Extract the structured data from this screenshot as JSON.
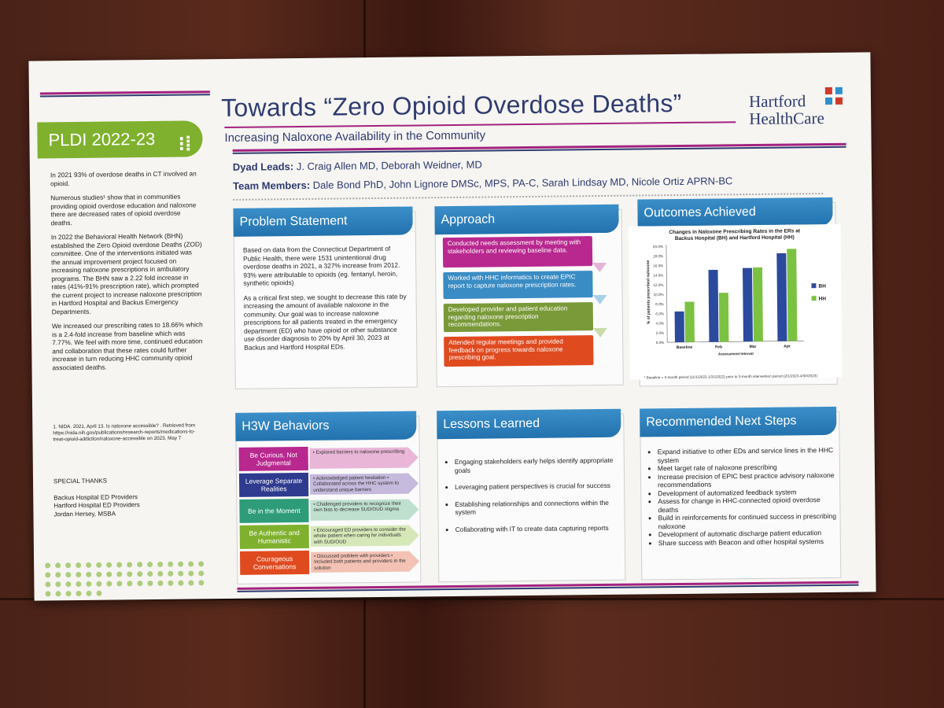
{
  "poster": {
    "title": "Towards “Zero Opioid Overdose Deaths”",
    "subtitle": "Increasing Naloxone Availability in the Community",
    "logo_line1": "Hartford",
    "logo_line2": "HealthCare",
    "dyad_label": "Dyad Leads:",
    "dyad_value": "J. Craig Allen MD, Deborah Weidner, MD",
    "team_label": "Team Members:",
    "team_value": "Dale Bond PhD, John Lignore DMSc, MPS, PA-C, Sarah Lindsay MD, Nicole Ortiz APRN-BC"
  },
  "left": {
    "banner": "PLDI 2022-23",
    "paragraphs": [
      "In 2021 93% of overdose deaths in CT involved an opioid.",
      "Numerous studies¹ show that in communities providing opioid overdose education and naloxone there are decreased rates of opioid overdose deaths.",
      "In 2022 the Behavioral Health Network (BHN) established the Zero Opioid overdose Deaths (ZOD) committee. One of the interventions initiated was the annual improvement project focused on increasing naloxone prescriptions in ambulatory programs. The BHN saw a 2.22 fold increase in rates (41%-91% prescription rate), which prompted the current project to increase naloxone prescription in Hartford Hospital and Backus Emergency Departments.",
      "We increased our prescribing rates to 18.66% which is a 2.4-fold increase from baseline which was 7.77%. We feel with more time, continued education and collaboration that these rates could further increase in turn reducing HHC community opioid associated deaths."
    ],
    "reference": "1. NIDA. 2021, April 13. Is naloxone accessible? . Retrieved from https://nida.nih.gov/publications/research-reports/medications-to-treat-opioid-addiction/naloxone-accessible on 2023, May 7",
    "thanks_title": "SPECIAL THANKS",
    "thanks": [
      "Backus Hospital ED Providers",
      "Hartford Hospital ED Providers",
      "Jordan Hersey, MSBA"
    ]
  },
  "problem": {
    "heading": "Problem Statement",
    "p1": "Based on data from the Connecticut Department of Public Health, there were 1531 unintentional drug overdose deaths in 2021, a 327% increase from 2012. 93% were attributable to opioids (eg. fentanyl, heroin, synthetic opioids)",
    "p2": "As a critical first step, we sought to decrease this rate by increasing the amount of available naloxone in the community. Our goal was to increase naloxone prescriptions for all patients treated in the emergency department (ED) who have opioid or other substance use disorder diagnosis to 20% by April 30, 2023 at Backus and Hartford Hospital EDs."
  },
  "approach": {
    "heading": "Approach",
    "steps": [
      "Conducted needs assessment by meeting with stakeholders and reviewing baseline data.",
      "Worked with HHC informatics to create EPIC report to capture naloxone prescription rates.",
      "Developed provider and patient education regarding naloxone prescription recommendations.",
      "Attended regular meetings and provided feedback on progress towards naloxone prescribing goal."
    ],
    "colors": [
      "#b8288f",
      "#3a8cc4",
      "#7a9a3a",
      "#e04a1f"
    ]
  },
  "outcomes": {
    "heading": "Outcomes Achieved",
    "footnote": "* Baseline = 3-month period (11/1/2022-1/31/2022) prior to 3-month intervention period (2/1/2023-4/30/2023)"
  },
  "chart_data": {
    "type": "bar",
    "title": "Changes in Naloxone Prescribing Rates in the ERs at Backus Hospital (BH) and Hartford Hospital (HH)",
    "xlabel": "Assessment Interval",
    "ylabel": "% of patients prescribed naloxone",
    "categories": [
      "Baseline",
      "Feb",
      "Mar",
      "Apr"
    ],
    "series": [
      {
        "name": "BH",
        "color": "#2b4a9e",
        "values": [
          6.4,
          15.0,
          15.3,
          18.3
        ]
      },
      {
        "name": "HH",
        "color": "#7cc242",
        "values": [
          8.4,
          10.2,
          15.4,
          19.2
        ]
      }
    ],
    "ylim": [
      0,
      20
    ],
    "yticks": [
      "0.0%",
      "2.0%",
      "4.0%",
      "6.0%",
      "8.0%",
      "10.0%",
      "12.0%",
      "14.0%",
      "16.0%",
      "18.0%",
      "20.0%"
    ]
  },
  "h3w": {
    "heading": "H3W Behaviors",
    "rows": [
      {
        "label": "Be Curious, Not Judgmental",
        "text": "• Explored barriers to naloxone prescribing",
        "color": "#b8288f",
        "light": "#e9b6d8"
      },
      {
        "label": "Leverage Separate Realities",
        "text": "• Acknowledged patient hesitation • Collaborated across the HHC system to understand unique barriers",
        "color": "#2f3b8f",
        "light": "#c5b9dc"
      },
      {
        "label": "Be in the Moment",
        "text": "• Challenged providers to recognize their own bias to decrease SUD/OUD stigma",
        "color": "#2e9c78",
        "light": "#bfe0cf"
      },
      {
        "label": "Be Authentic and Humanistic",
        "text": "• Encouraged ED providers to consider the whole patient when caring for individuals with SUD/OUD",
        "color": "#7fb12e",
        "light": "#d6e8b8"
      },
      {
        "label": "Courageous Conversations",
        "text": "• Discussed problem with providers • Included both patients and providers in the solution",
        "color": "#e04a1f",
        "light": "#f3c2b4"
      }
    ]
  },
  "lessons": {
    "heading": "Lessons Learned",
    "items": [
      "Engaging stakeholders early helps identify appropriate goals",
      "Leveraging patient perspectives is crucial for success",
      "Establishing relationships and connections within the system",
      "Collaborating with IT to create data capturing reports"
    ]
  },
  "next": {
    "heading": "Recommended Next Steps",
    "items": [
      "Expand initiative to other EDs and service lines in the HHC system",
      "Meet target rate of naloxone prescribing",
      "Increase precision of EPIC best practice advisory naloxone recommendations",
      "Development of automatized feedback system",
      "Assess for change in HHC-connected opioid overdose deaths",
      "Build in reinforcements for continued success in prescribing naloxone",
      "Development of automatic discharge patient education",
      "Share success with Beacon and other hospital systems"
    ]
  }
}
